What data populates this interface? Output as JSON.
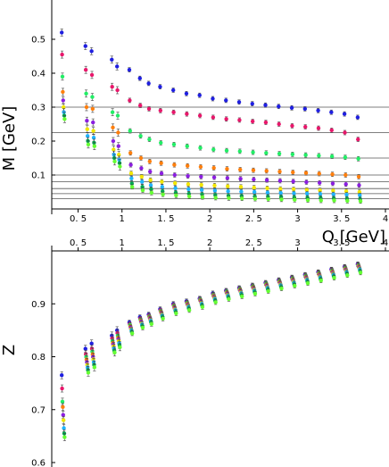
{
  "chart_data": [
    {
      "type": "scatter",
      "xlabel": "Q [GeV]",
      "ylabel": "M [GeV]",
      "xlim": [
        0.2,
        4.0
      ],
      "ylim": [
        0.0,
        0.6
      ],
      "x_ticks": [
        "0. 5",
        "1",
        "1. 5",
        "2",
        "2. 5",
        "3",
        "3. 5",
        "4"
      ],
      "y_ticks": [
        "0.1",
        "0.2",
        "0.3",
        "0.4",
        "0.5"
      ],
      "reference_lines_y": [
        0.03,
        0.045,
        0.06,
        0.08,
        0.1,
        0.15,
        0.225,
        0.3
      ],
      "x": [
        0.33,
        0.6,
        0.67,
        0.9,
        0.96,
        1.1,
        1.22,
        1.32,
        1.45,
        1.6,
        1.75,
        1.9,
        2.05,
        2.2,
        2.35,
        2.5,
        2.65,
        2.8,
        2.95,
        3.1,
        3.25,
        3.4,
        3.55,
        3.7
      ],
      "series": [
        {
          "color": "#1f1fe0",
          "values": [
            0.52,
            0.48,
            0.465,
            0.44,
            0.42,
            0.41,
            0.385,
            0.37,
            0.36,
            0.35,
            0.34,
            0.335,
            0.325,
            0.32,
            0.315,
            0.31,
            0.306,
            0.302,
            0.298,
            0.295,
            0.29,
            0.285,
            0.28,
            0.27
          ]
        },
        {
          "color": "#e8176b",
          "values": [
            0.455,
            0.41,
            0.395,
            0.36,
            0.35,
            0.32,
            0.305,
            0.295,
            0.29,
            0.285,
            0.28,
            0.275,
            0.27,
            0.265,
            0.262,
            0.258,
            0.255,
            0.25,
            0.245,
            0.242,
            0.238,
            0.232,
            0.225,
            0.205
          ]
        },
        {
          "color": "#22ee66",
          "values": [
            0.39,
            0.34,
            0.33,
            0.285,
            0.275,
            0.23,
            0.215,
            0.205,
            0.195,
            0.19,
            0.185,
            0.18,
            0.175,
            0.172,
            0.17,
            0.167,
            0.165,
            0.163,
            0.161,
            0.159,
            0.157,
            0.155,
            0.152,
            0.148
          ]
        },
        {
          "color": "#ff7f0e",
          "values": [
            0.345,
            0.3,
            0.295,
            0.24,
            0.225,
            0.165,
            0.15,
            0.14,
            0.135,
            0.13,
            0.127,
            0.124,
            0.121,
            0.118,
            0.116,
            0.114,
            0.112,
            0.11,
            0.108,
            0.106,
            0.104,
            0.102,
            0.1,
            0.095
          ]
        },
        {
          "color": "#8b1ee0",
          "values": [
            0.32,
            0.26,
            0.255,
            0.2,
            0.185,
            0.13,
            0.12,
            0.11,
            0.105,
            0.1,
            0.097,
            0.095,
            0.093,
            0.091,
            0.089,
            0.087,
            0.085,
            0.083,
            0.081,
            0.079,
            0.077,
            0.075,
            0.073,
            0.07
          ]
        },
        {
          "color": "#f2e600",
          "values": [
            0.3,
            0.235,
            0.23,
            0.175,
            0.16,
            0.105,
            0.095,
            0.085,
            0.08,
            0.076,
            0.073,
            0.071,
            0.069,
            0.067,
            0.065,
            0.063,
            0.061,
            0.059,
            0.058,
            0.056,
            0.055,
            0.054,
            0.052,
            0.05
          ]
        },
        {
          "color": "#1fb4ff",
          "values": [
            0.285,
            0.215,
            0.21,
            0.16,
            0.145,
            0.09,
            0.08,
            0.07,
            0.065,
            0.061,
            0.058,
            0.056,
            0.054,
            0.052,
            0.051,
            0.05,
            0.048,
            0.047,
            0.046,
            0.045,
            0.044,
            0.043,
            0.042,
            0.04
          ]
        },
        {
          "color": "#00a651",
          "values": [
            0.275,
            0.2,
            0.195,
            0.15,
            0.135,
            0.075,
            0.065,
            0.058,
            0.052,
            0.048,
            0.045,
            0.043,
            0.041,
            0.039,
            0.038,
            0.037,
            0.036,
            0.035,
            0.034,
            0.033,
            0.032,
            0.031,
            0.03,
            0.029
          ]
        },
        {
          "color": "#66ff33",
          "values": [
            0.265,
            0.19,
            0.185,
            0.14,
            0.125,
            0.065,
            0.055,
            0.048,
            0.043,
            0.04,
            0.037,
            0.035,
            0.033,
            0.032,
            0.031,
            0.03,
            0.029,
            0.028,
            0.027,
            0.026,
            0.025,
            0.025,
            0.024,
            0.023
          ]
        }
      ]
    },
    {
      "type": "scatter",
      "xlabel": "",
      "ylabel": "Z",
      "xlim": [
        0.2,
        4.0
      ],
      "ylim": [
        0.6,
        1.0
      ],
      "x_ticks": [
        "0. 5",
        "1",
        "1. 5",
        "2",
        "2. 5",
        "3",
        "3. 5",
        "4"
      ],
      "y_ticks": [
        "0.6",
        "0.7",
        "0.8",
        "0.9"
      ],
      "x": [
        0.33,
        0.6,
        0.67,
        0.9,
        0.96,
        1.1,
        1.22,
        1.32,
        1.45,
        1.6,
        1.75,
        1.9,
        2.05,
        2.2,
        2.35,
        2.5,
        2.65,
        2.8,
        2.95,
        3.1,
        3.25,
        3.4,
        3.55,
        3.7
      ],
      "series": [
        {
          "color": "#1f1fe0",
          "values": [
            0.765,
            0.815,
            0.825,
            0.84,
            0.85,
            0.865,
            0.875,
            0.88,
            0.89,
            0.9,
            0.905,
            0.91,
            0.92,
            0.925,
            0.93,
            0.935,
            0.94,
            0.945,
            0.95,
            0.955,
            0.96,
            0.965,
            0.97,
            0.975
          ]
        },
        {
          "color": "#e8176b",
          "values": [
            0.74,
            0.805,
            0.815,
            0.835,
            0.845,
            0.862,
            0.872,
            0.878,
            0.888,
            0.898,
            0.903,
            0.909,
            0.918,
            0.924,
            0.929,
            0.934,
            0.939,
            0.944,
            0.949,
            0.954,
            0.959,
            0.964,
            0.969,
            0.974
          ]
        },
        {
          "color": "#22ee66",
          "values": [
            0.715,
            0.8,
            0.81,
            0.83,
            0.84,
            0.86,
            0.87,
            0.876,
            0.886,
            0.896,
            0.902,
            0.908,
            0.917,
            0.923,
            0.928,
            0.933,
            0.938,
            0.943,
            0.948,
            0.953,
            0.958,
            0.963,
            0.968,
            0.973
          ]
        },
        {
          "color": "#ff7f0e",
          "values": [
            0.705,
            0.795,
            0.805,
            0.826,
            0.836,
            0.857,
            0.868,
            0.874,
            0.884,
            0.894,
            0.9,
            0.906,
            0.915,
            0.921,
            0.926,
            0.931,
            0.936,
            0.941,
            0.946,
            0.951,
            0.956,
            0.961,
            0.966,
            0.971
          ]
        },
        {
          "color": "#8b1ee0",
          "values": [
            0.69,
            0.79,
            0.8,
            0.823,
            0.833,
            0.855,
            0.866,
            0.872,
            0.882,
            0.892,
            0.898,
            0.904,
            0.913,
            0.919,
            0.924,
            0.929,
            0.934,
            0.939,
            0.944,
            0.949,
            0.954,
            0.959,
            0.964,
            0.969
          ]
        },
        {
          "color": "#f2e600",
          "values": [
            0.68,
            0.785,
            0.795,
            0.82,
            0.83,
            0.852,
            0.863,
            0.87,
            0.88,
            0.89,
            0.896,
            0.902,
            0.911,
            0.917,
            0.922,
            0.927,
            0.932,
            0.937,
            0.942,
            0.947,
            0.952,
            0.957,
            0.962,
            0.967
          ]
        },
        {
          "color": "#1fb4ff",
          "values": [
            0.665,
            0.78,
            0.79,
            0.816,
            0.826,
            0.85,
            0.861,
            0.868,
            0.878,
            0.888,
            0.894,
            0.9,
            0.909,
            0.915,
            0.92,
            0.925,
            0.93,
            0.935,
            0.94,
            0.945,
            0.95,
            0.955,
            0.96,
            0.965
          ]
        },
        {
          "color": "#00a651",
          "values": [
            0.655,
            0.775,
            0.785,
            0.812,
            0.822,
            0.847,
            0.858,
            0.865,
            0.875,
            0.885,
            0.891,
            0.897,
            0.906,
            0.912,
            0.917,
            0.922,
            0.927,
            0.932,
            0.937,
            0.942,
            0.947,
            0.952,
            0.957,
            0.962
          ]
        },
        {
          "color": "#66ff33",
          "values": [
            0.648,
            0.77,
            0.78,
            0.808,
            0.818,
            0.844,
            0.855,
            0.862,
            0.872,
            0.882,
            0.888,
            0.894,
            0.903,
            0.909,
            0.914,
            0.919,
            0.924,
            0.929,
            0.934,
            0.939,
            0.944,
            0.949,
            0.954,
            0.959
          ]
        }
      ]
    }
  ]
}
